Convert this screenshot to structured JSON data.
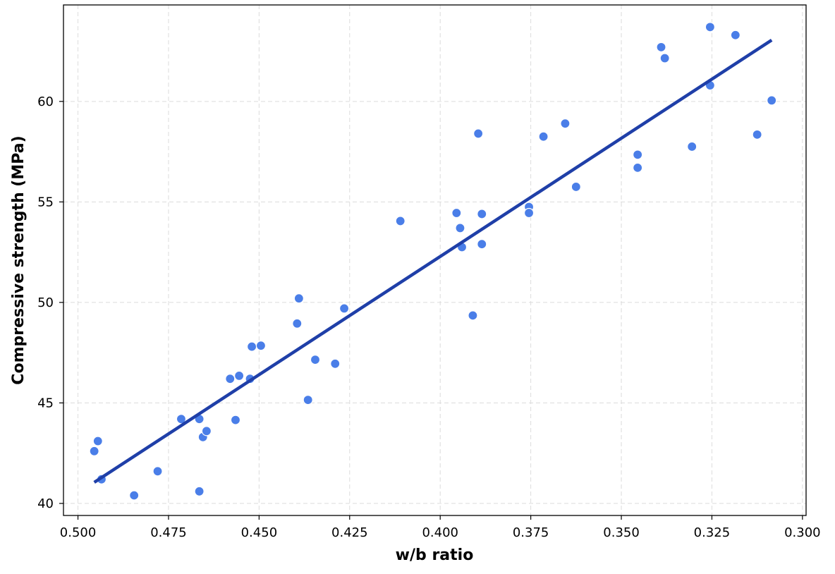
{
  "chart_data": {
    "type": "scatter",
    "title": "",
    "xlabel": "w/b ratio",
    "ylabel": "Compressive strength (MPa)",
    "x_inverted": true,
    "xlim": [
      0.504,
      0.299
    ],
    "ylim": [
      39.4,
      64.8
    ],
    "xticks": [
      0.5,
      0.475,
      0.45,
      0.425,
      0.4,
      0.375,
      0.35,
      0.325,
      0.3
    ],
    "xtick_labels": [
      "0.500",
      "0.475",
      "0.450",
      "0.425",
      "0.400",
      "0.375",
      "0.350",
      "0.325",
      "0.300"
    ],
    "yticks": [
      40,
      45,
      50,
      55,
      60
    ],
    "ytick_labels": [
      "40",
      "45",
      "50",
      "55",
      "60"
    ],
    "grid": true,
    "colors": {
      "points": "#4a7ee8",
      "point_edge": "#ffffff",
      "fit_line": "#1f3fa8"
    },
    "series": [
      {
        "kind": "points",
        "x": [
          0.4955,
          0.4945,
          0.4935,
          0.4845,
          0.478,
          0.4715,
          0.4665,
          0.4665,
          0.4655,
          0.4645,
          0.458,
          0.4565,
          0.4555,
          0.4525,
          0.452,
          0.4495,
          0.4395,
          0.439,
          0.4365,
          0.4345,
          0.429,
          0.4265,
          0.411,
          0.3955,
          0.3945,
          0.394,
          0.391,
          0.3895,
          0.3885,
          0.3885,
          0.3755,
          0.3755,
          0.3715,
          0.3655,
          0.3625,
          0.3455,
          0.3455,
          0.339,
          0.338,
          0.3305,
          0.3255,
          0.3255,
          0.3185,
          0.3125,
          0.3085
        ],
        "y": [
          42.6,
          43.1,
          41.2,
          40.4,
          41.6,
          44.2,
          40.6,
          44.2,
          43.3,
          43.6,
          46.2,
          44.15,
          46.35,
          46.2,
          47.8,
          47.85,
          48.95,
          50.2,
          45.15,
          47.15,
          46.95,
          49.7,
          54.05,
          54.45,
          53.7,
          52.75,
          49.35,
          58.4,
          54.4,
          52.9,
          54.75,
          54.45,
          58.25,
          58.9,
          55.75,
          57.35,
          56.7,
          62.7,
          62.15,
          57.75,
          63.7,
          60.8,
          63.3,
          58.35,
          60.05
        ]
      },
      {
        "kind": "fit_line",
        "x": [
          0.4955,
          0.3085
        ],
        "y": [
          41.05,
          63.05
        ]
      }
    ]
  }
}
